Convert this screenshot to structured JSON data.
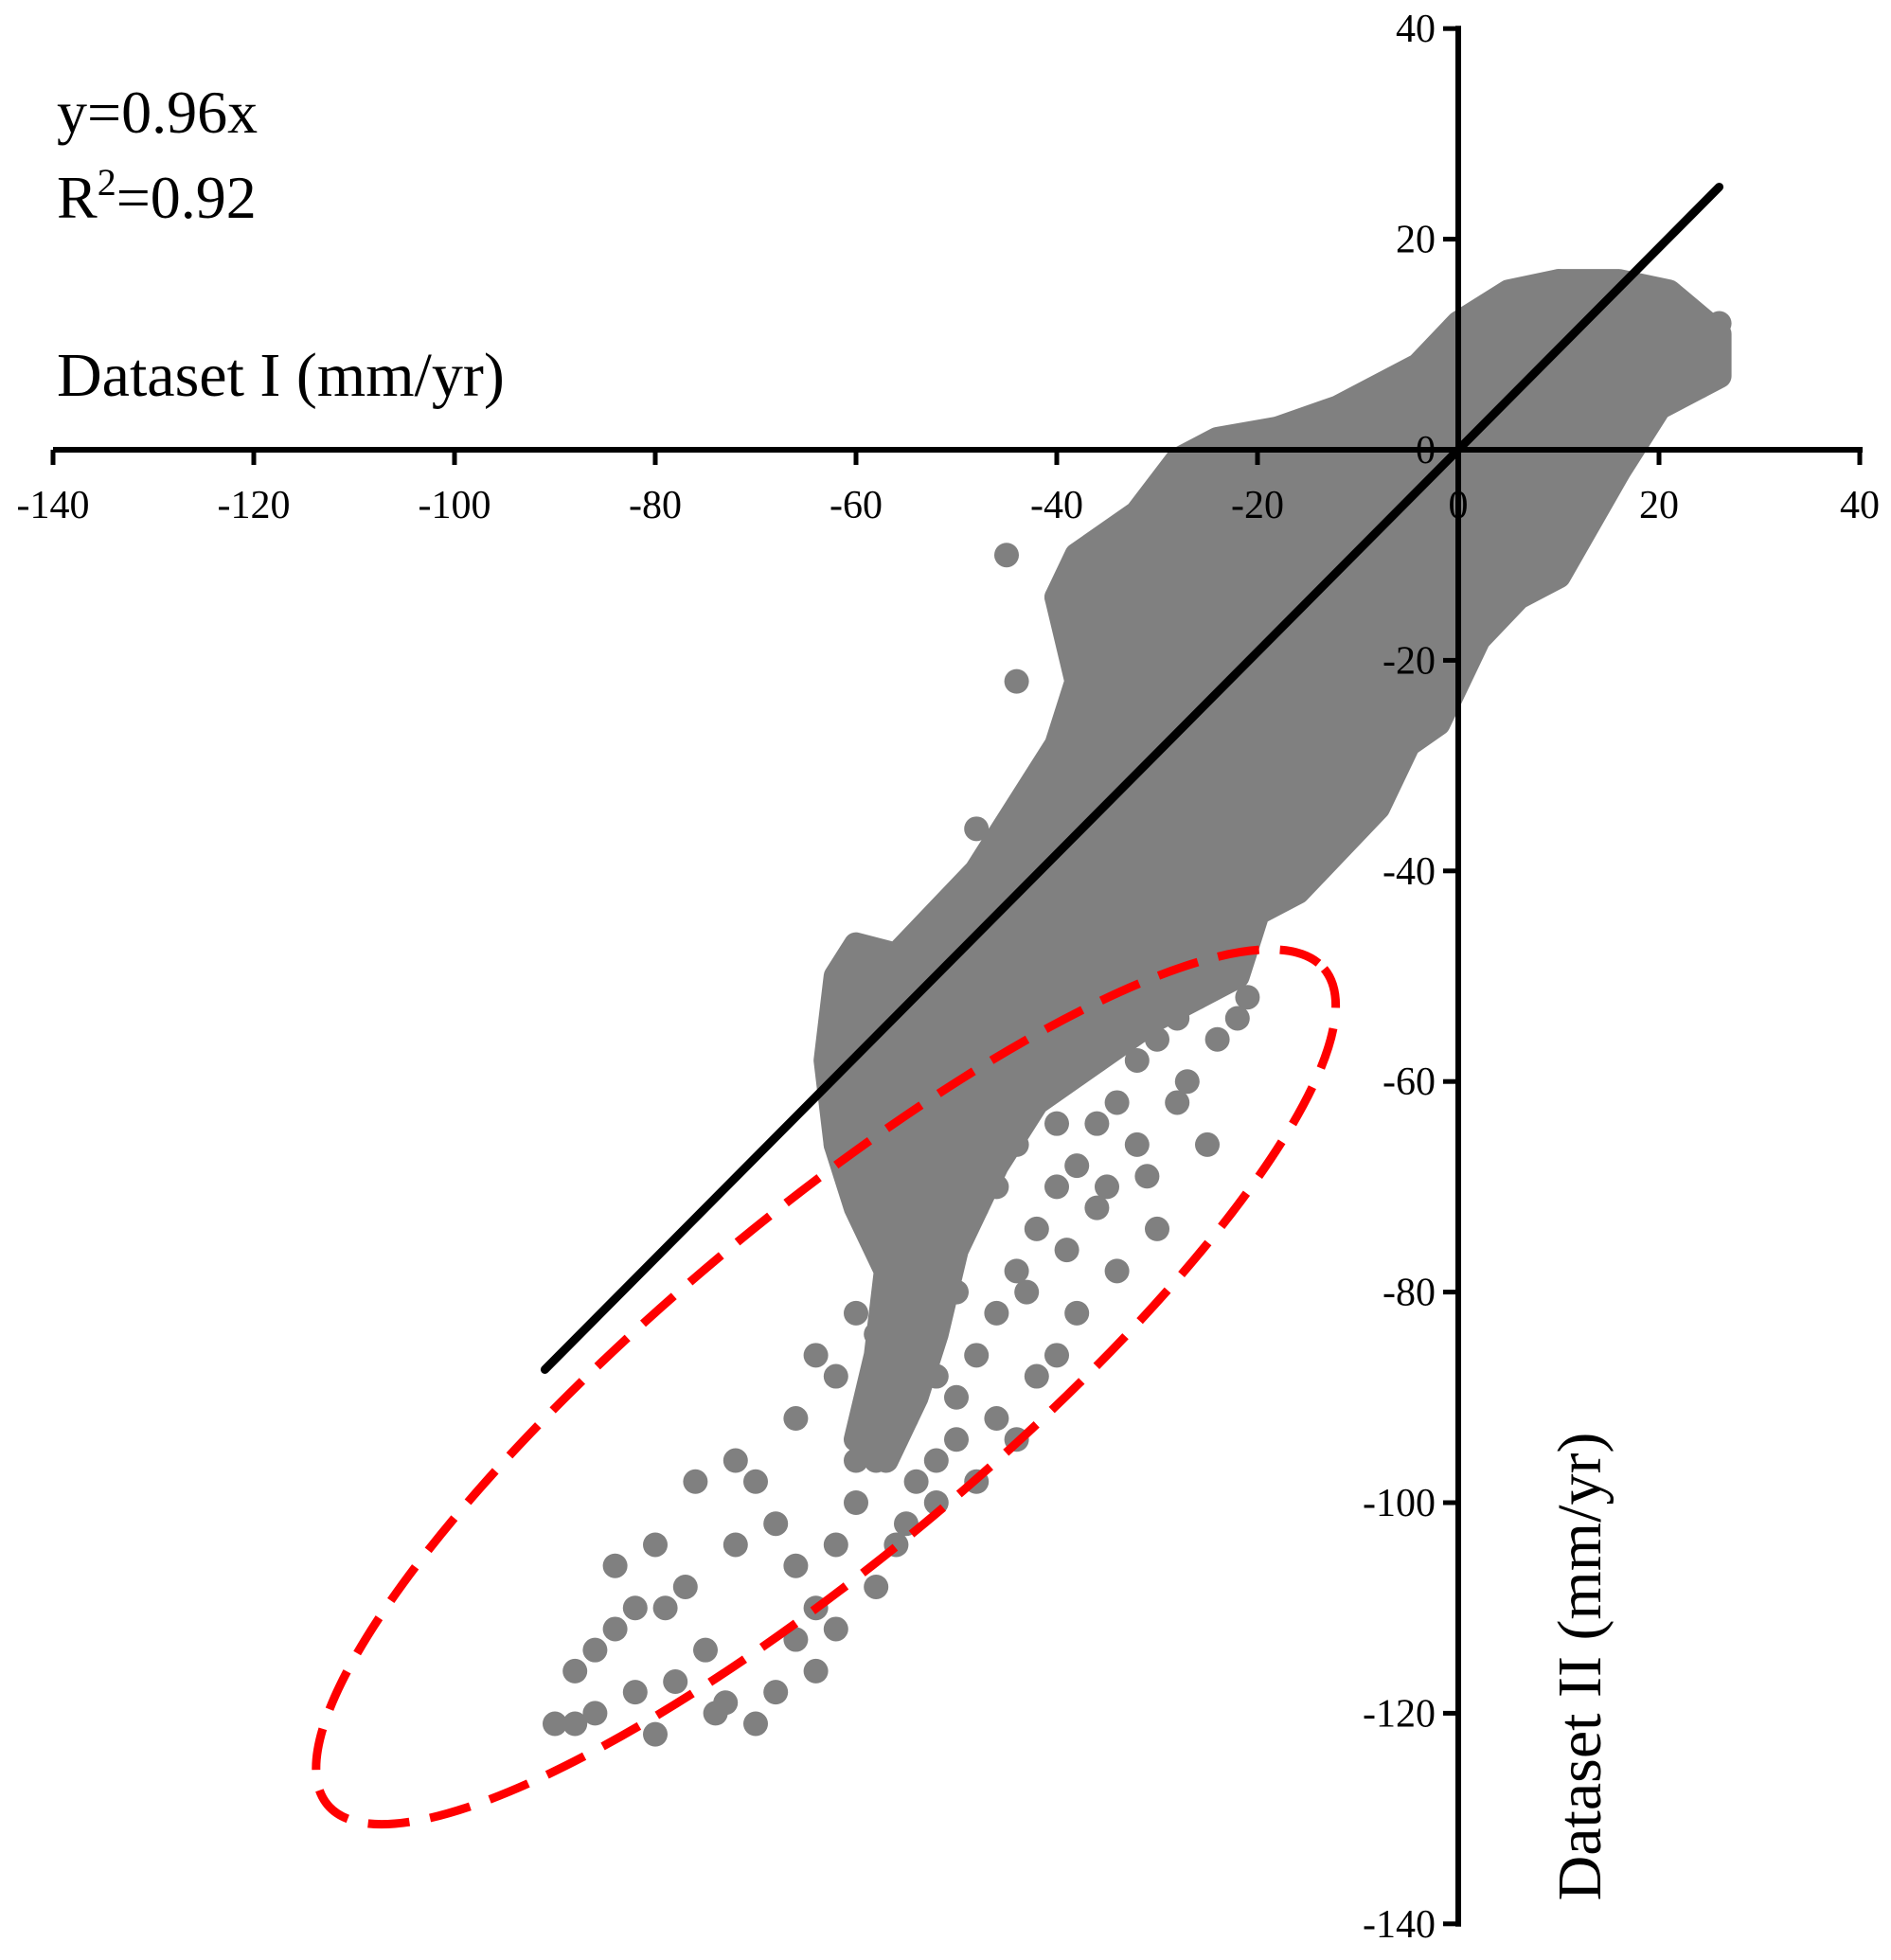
{
  "chart_data": {
    "type": "scatter",
    "title": "",
    "xlabel": "Dataset I (mm/yr)",
    "ylabel": "Dataset II (mm/yr)",
    "xlim": [
      -140,
      40
    ],
    "ylim": [
      -140,
      40
    ],
    "x_ticks": [
      -140,
      -120,
      -100,
      -80,
      -60,
      -40,
      -20,
      0,
      20,
      40
    ],
    "y_ticks": [
      40,
      20,
      0,
      -20,
      -40,
      -60,
      -80,
      -100,
      -120,
      -140
    ],
    "x_tick_labels": [
      "-140",
      "-120",
      "-100",
      "-80",
      "-60",
      "-40",
      "-20",
      "0",
      "20",
      "40"
    ],
    "y_tick_labels": [
      "40",
      "20",
      "0",
      "-20",
      "-40",
      "-60",
      "-80",
      "-100",
      "-120",
      "-140"
    ],
    "grid": false,
    "axes_style": "crossing at origin",
    "point_color": "#808080",
    "fit_color": "#000000",
    "highlight_color": "#ff0000",
    "annotation": {
      "equation": "y=0.96x",
      "r_squared_prefix": "R",
      "r_squared_exp": "2",
      "r_squared_value": "=0.92"
    },
    "fit_line": {
      "slope": 0.96,
      "x_start": -91,
      "x_end": 26
    },
    "highlight_ellipse": {
      "center": [
        -63,
        -89
      ],
      "semi_axis_major": 48,
      "semi_axis_minor": 11,
      "rotation_deg": 40
    },
    "dense_cloud": [
      [
        -28,
        -10
      ],
      [
        -25,
        -6
      ],
      [
        -22,
        -12
      ],
      [
        -20,
        -3
      ],
      [
        -18,
        -1
      ],
      [
        -15,
        -12
      ],
      [
        -12,
        -4
      ],
      [
        -10,
        0
      ],
      [
        -8,
        -6
      ],
      [
        -5,
        3
      ],
      [
        -3,
        5
      ],
      [
        0,
        2
      ],
      [
        2,
        8
      ],
      [
        5,
        10
      ],
      [
        8,
        12
      ],
      [
        10,
        14
      ],
      [
        12,
        10
      ],
      [
        15,
        12
      ],
      [
        18,
        14
      ],
      [
        20,
        8
      ],
      [
        22,
        10
      ],
      [
        24,
        6
      ],
      [
        25,
        10
      ],
      [
        6,
        4
      ],
      [
        3,
        -2
      ],
      [
        0,
        -8
      ],
      [
        -2,
        -12
      ],
      [
        -6,
        -16
      ],
      [
        -10,
        -18
      ],
      [
        -14,
        -20
      ],
      [
        -18,
        -24
      ],
      [
        -22,
        -26
      ],
      [
        -24,
        -28
      ],
      [
        -26,
        -30
      ],
      [
        -28,
        -32
      ],
      [
        -30,
        -36
      ],
      [
        -33,
        -38
      ],
      [
        -36,
        -40
      ],
      [
        -38,
        -42
      ],
      [
        -42,
        -46
      ],
      [
        -44,
        -48
      ],
      [
        -46,
        -52
      ],
      [
        -48,
        -56
      ],
      [
        -50,
        -58
      ],
      [
        -52,
        -62
      ],
      [
        -54,
        -66
      ],
      [
        -56,
        -68
      ],
      [
        -54,
        -58
      ],
      [
        -58,
        -50
      ],
      [
        -60,
        -52
      ],
      [
        -62,
        -58
      ],
      [
        -40,
        -30
      ],
      [
        -36,
        -26
      ],
      [
        -32,
        -20
      ],
      [
        -30,
        -14
      ],
      [
        -36,
        -18
      ],
      [
        -20,
        -36
      ],
      [
        -16,
        -30
      ],
      [
        -12,
        -28
      ],
      [
        -8,
        -22
      ],
      [
        -4,
        -20
      ],
      [
        -1,
        -22
      ],
      [
        4,
        -8
      ],
      [
        8,
        -6
      ],
      [
        12,
        -4
      ],
      [
        16,
        2
      ],
      [
        20,
        4
      ],
      [
        26,
        12
      ],
      [
        -45,
        -10
      ],
      [
        -40,
        -14
      ],
      [
        -44,
        -22
      ],
      [
        -48,
        -36
      ],
      [
        -46,
        -44
      ],
      [
        -40,
        -50
      ],
      [
        -34,
        -52
      ],
      [
        -30,
        -48
      ],
      [
        -26,
        -44
      ],
      [
        -24,
        -40
      ],
      [
        -20,
        -44
      ],
      [
        -16,
        -38
      ],
      [
        -58,
        -70
      ],
      [
        -56,
        -76
      ],
      [
        -54,
        -82
      ],
      [
        -52,
        -88
      ],
      [
        -55,
        -92
      ],
      [
        -58,
        -96
      ],
      [
        -50,
        -80
      ],
      [
        -48,
        -72
      ],
      [
        -46,
        -70
      ],
      [
        -44,
        -66
      ],
      [
        -40,
        -64
      ],
      [
        -36,
        -58
      ],
      [
        -32,
        -54
      ],
      [
        -8,
        -14
      ],
      [
        -12,
        -10
      ],
      [
        -16,
        -6
      ],
      [
        -20,
        -14
      ],
      [
        -24,
        -18
      ],
      [
        -28,
        -22
      ],
      [
        -32,
        -26
      ],
      [
        -30,
        -4
      ],
      [
        -26,
        -2
      ],
      [
        -22,
        0
      ],
      [
        -18,
        2
      ],
      [
        -14,
        2
      ],
      [
        -10,
        4
      ],
      [
        -6,
        6
      ],
      [
        -2,
        8
      ],
      [
        2,
        12
      ],
      [
        6,
        14
      ],
      [
        10,
        16
      ],
      [
        14,
        15
      ],
      [
        18,
        15
      ],
      [
        22,
        13
      ],
      [
        -42,
        -40
      ],
      [
        -38,
        -34
      ],
      [
        -34,
        -30
      ],
      [
        -50,
        -48
      ],
      [
        -52,
        -54
      ],
      [
        -56,
        -60
      ],
      [
        -60,
        -64
      ],
      [
        -62,
        -66
      ],
      [
        -45,
        -56
      ],
      [
        -42,
        -58
      ],
      [
        -38,
        -48
      ],
      [
        -34,
        -44
      ]
    ],
    "outliers": [
      [
        -90,
        -121
      ],
      [
        -88,
        -116
      ],
      [
        -86,
        -114
      ],
      [
        -84,
        -112
      ],
      [
        -82,
        -118
      ],
      [
        -80,
        -122
      ],
      [
        -79,
        -110
      ],
      [
        -77,
        -108
      ],
      [
        -75,
        -114
      ],
      [
        -73,
        -119
      ],
      [
        -72,
        -104
      ],
      [
        -70,
        -98
      ],
      [
        -68,
        -102
      ],
      [
        -66,
        -106
      ],
      [
        -64,
        -110
      ],
      [
        -62,
        -104
      ],
      [
        -60,
        -100
      ],
      [
        -58,
        -94
      ],
      [
        -64,
        -116
      ],
      [
        -68,
        -118
      ],
      [
        -70,
        -121
      ],
      [
        -74,
        -120
      ],
      [
        -78,
        -117
      ],
      [
        -82,
        -110
      ],
      [
        -86,
        -120
      ],
      [
        -88,
        -121
      ],
      [
        -66,
        -113
      ],
      [
        -62,
        -112
      ],
      [
        -58,
        -108
      ],
      [
        -55,
        -102
      ],
      [
        -52,
        -96
      ],
      [
        -50,
        -90
      ],
      [
        -48,
        -86
      ],
      [
        -46,
        -82
      ],
      [
        -44,
        -78
      ],
      [
        -42,
        -74
      ],
      [
        -40,
        -70
      ],
      [
        -38,
        -68
      ],
      [
        -36,
        -64
      ],
      [
        -34,
        -62
      ],
      [
        -32,
        -58
      ],
      [
        -30,
        -56
      ],
      [
        -28,
        -54
      ],
      [
        -26,
        -52
      ],
      [
        -24,
        -56
      ],
      [
        -22,
        -54
      ],
      [
        -25,
        -66
      ],
      [
        -30,
        -74
      ],
      [
        -34,
        -78
      ],
      [
        -38,
        -82
      ],
      [
        -40,
        -86
      ],
      [
        -42,
        -88
      ],
      [
        -46,
        -92
      ],
      [
        -50,
        -94
      ],
      [
        -54,
        -98
      ],
      [
        -60,
        -96
      ],
      [
        -72,
        -96
      ],
      [
        -76,
        -98
      ],
      [
        -80,
        -104
      ],
      [
        -84,
        -106
      ],
      [
        -36,
        -72
      ],
      [
        -32,
        -66
      ],
      [
        -28,
        -62
      ],
      [
        -44,
        -94
      ],
      [
        -48,
        -98
      ],
      [
        -52,
        -100
      ],
      [
        -56,
        -104
      ],
      [
        -66,
        -92
      ],
      [
        -62,
        -88
      ],
      [
        -58,
        -84
      ],
      [
        -56,
        -80
      ],
      [
        -54,
        -76
      ],
      [
        -52,
        -74
      ],
      [
        -50,
        -70
      ],
      [
        -48,
        -66
      ],
      [
        -60,
        -82
      ],
      [
        -64,
        -86
      ],
      [
        -31,
        -69
      ],
      [
        -39,
        -76
      ],
      [
        -43,
        -80
      ],
      [
        -35,
        -70
      ],
      [
        -27,
        -60
      ],
      [
        -21,
        -52
      ]
    ]
  }
}
